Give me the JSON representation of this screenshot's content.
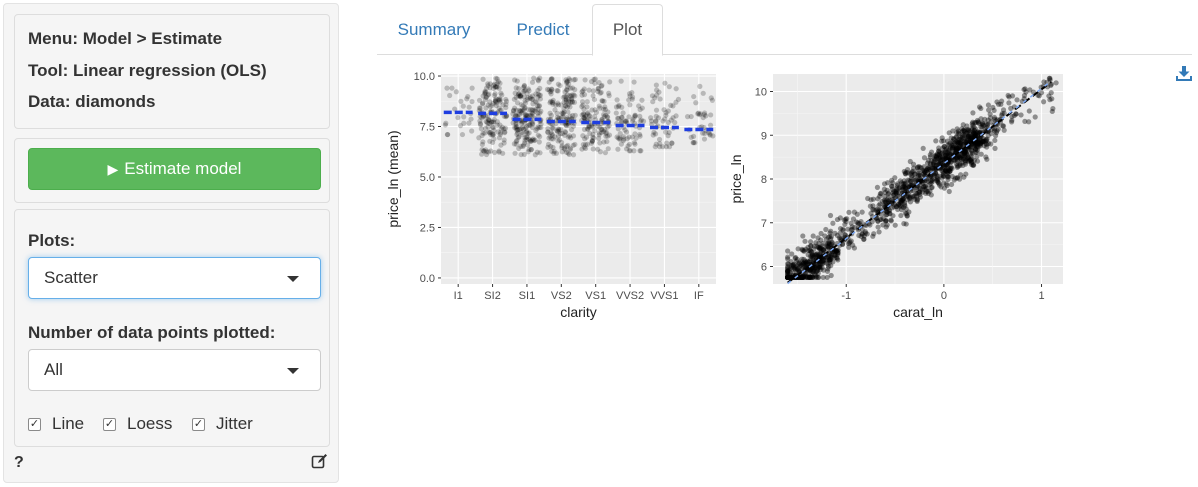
{
  "sidebar": {
    "info": {
      "menu": "Menu: Model > Estimate",
      "tool": "Tool: Linear regression (OLS)",
      "data": "Data: diamonds"
    },
    "estimate_button": "Estimate model",
    "plots_label": "Plots:",
    "plots_value": "Scatter",
    "points_label": "Number of data points plotted:",
    "points_value": "All",
    "checkboxes": [
      {
        "label": "Line",
        "checked": true
      },
      {
        "label": "Loess",
        "checked": true
      },
      {
        "label": "Jitter",
        "checked": true
      }
    ],
    "help": "?"
  },
  "tabs": [
    {
      "label": "Summary",
      "active": false
    },
    {
      "label": "Predict",
      "active": false
    },
    {
      "label": "Plot",
      "active": true
    }
  ],
  "colors": {
    "accent_link": "#337ab7",
    "button_green": "#5cb85c",
    "panel_bg": "#ebebeb",
    "fit_line": "#1f3ee0",
    "loess_line": "#7eaaf5"
  },
  "chart_data": [
    {
      "type": "scatter",
      "x_scale": "categorical",
      "categories": [
        "I1",
        "SI2",
        "SI1",
        "VS2",
        "VS1",
        "VVS2",
        "VVS1",
        "IF"
      ],
      "means": [
        8.2,
        8.15,
        7.85,
        7.75,
        7.7,
        7.55,
        7.45,
        7.35
      ],
      "point_ranges": [
        [
          7.1,
          9.4
        ],
        [
          6.1,
          9.9
        ],
        [
          6.1,
          9.9
        ],
        [
          6.1,
          9.9
        ],
        [
          6.2,
          9.9
        ],
        [
          6.3,
          9.9
        ],
        [
          6.5,
          9.8
        ],
        [
          6.7,
          9.5
        ]
      ],
      "point_density": [
        25,
        150,
        190,
        170,
        130,
        75,
        55,
        35
      ],
      "xlabel": "clarity",
      "ylabel": "price_ln (mean)",
      "ylim": [
        -0.3,
        10.1
      ],
      "yticks": [
        0.0,
        2.5,
        5.0,
        7.5,
        10.0
      ],
      "ytick_labels": [
        "0.0",
        "2.5",
        "5.0",
        "7.5",
        "10.0"
      ],
      "grid": true
    },
    {
      "type": "scatter",
      "xlabel": "carat_ln",
      "ylabel": "price_ln",
      "xlim": [
        -1.75,
        1.22
      ],
      "ylim": [
        5.6,
        10.4
      ],
      "xticks": [
        -1,
        0,
        1
      ],
      "xtick_labels": [
        "-1",
        "0",
        "1"
      ],
      "yticks": [
        6,
        7,
        8,
        9,
        10
      ],
      "ytick_labels": [
        "6",
        "7",
        "8",
        "9",
        "10"
      ],
      "fit_line": {
        "intercept": 8.35,
        "slope": 1.7,
        "x_range": [
          -1.6,
          1.1
        ]
      },
      "point_cloud": {
        "n": 1400,
        "x_range": [
          -1.6,
          1.15
        ],
        "intercept": 8.35,
        "slope": 1.7,
        "noise_sd": 0.26
      },
      "grid": true
    }
  ]
}
